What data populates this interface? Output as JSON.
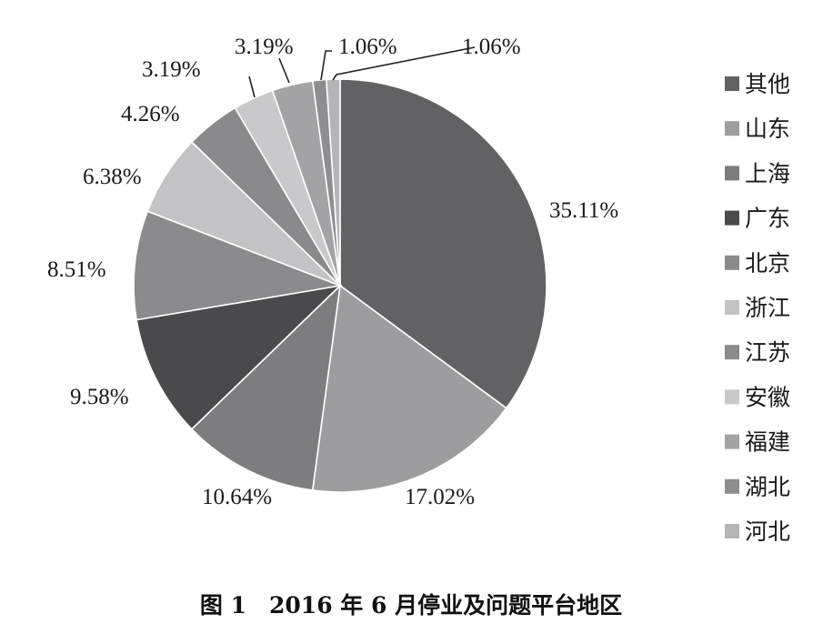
{
  "chart_data": {
    "type": "pie",
    "caption": "图 1　2016 年 6 月停业及问题平台地区",
    "categories": [
      "其他",
      "山东",
      "上海",
      "广东",
      "北京",
      "浙江",
      "江苏",
      "安徽",
      "福建",
      "湖北",
      "河北"
    ],
    "values": [
      35.11,
      17.02,
      10.64,
      9.58,
      8.51,
      6.38,
      4.26,
      3.19,
      3.19,
      1.06,
      1.06
    ],
    "labels": [
      "35.11%",
      "17.02%",
      "10.64%",
      "9.58%",
      "8.51%",
      "6.38%",
      "4.26%",
      "3.19%",
      "3.19%",
      "1.06%",
      "1.06%"
    ],
    "colors": [
      "#626264",
      "#9d9d9f",
      "#7d7d7f",
      "#4a4a4c",
      "#8b8b8d",
      "#c3c3c5",
      "#8a8a8c",
      "#c9c9cb",
      "#a3a3a5",
      "#8e8e90",
      "#b5b5b7"
    ],
    "legend_position": "right"
  }
}
